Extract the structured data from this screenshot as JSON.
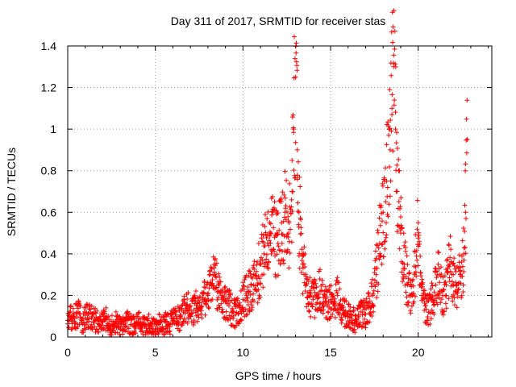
{
  "chart_data": {
    "type": "scatter",
    "title": "Day 311 of 2017, SRMTID for receiver stas",
    "xlabel": "GPS time / hours",
    "ylabel": "SRMTID / TECUs",
    "xlim": [
      0,
      24.2
    ],
    "ylim": [
      0,
      1.4
    ],
    "xticks": [
      0,
      5,
      10,
      15,
      20
    ],
    "xtick_labels": [
      "0",
      "5",
      "10",
      "15",
      "20"
    ],
    "yticks": [
      0,
      0.2,
      0.4,
      0.6,
      0.8,
      1.0,
      1.2,
      1.4
    ],
    "ytick_labels": [
      "0",
      "0.2",
      "0.4",
      "0.6",
      "0.8",
      "1",
      "1.2",
      "1.4"
    ],
    "grid": true,
    "marker": "+",
    "color": "#ff0000",
    "series": [
      {
        "name": "SRMTID",
        "x": [
          0.0,
          0.2,
          0.4,
          0.6,
          0.8,
          1.0,
          1.2,
          1.4,
          1.6,
          1.8,
          2.0,
          2.2,
          2.4,
          2.6,
          2.8,
          3.0,
          3.2,
          3.4,
          3.6,
          3.8,
          4.0,
          4.2,
          4.4,
          4.6,
          4.8,
          5.0,
          5.2,
          5.4,
          5.6,
          5.8,
          6.0,
          6.2,
          6.4,
          6.6,
          6.8,
          7.0,
          7.2,
          7.4,
          7.6,
          7.8,
          8.0,
          8.2,
          8.4,
          8.6,
          8.8,
          9.0,
          9.2,
          9.4,
          9.6,
          9.8,
          10.0,
          10.2,
          10.4,
          10.6,
          10.8,
          11.0,
          11.2,
          11.4,
          11.6,
          11.8,
          12.0,
          12.2,
          12.4,
          12.6,
          12.8,
          12.9,
          13.0,
          13.1,
          13.2,
          13.4,
          13.6,
          13.8,
          14.0,
          14.2,
          14.4,
          14.6,
          14.8,
          15.0,
          15.2,
          15.4,
          15.6,
          15.8,
          16.0,
          16.2,
          16.4,
          16.6,
          16.8,
          17.0,
          17.2,
          17.4,
          17.6,
          17.8,
          18.0,
          18.2,
          18.4,
          18.5,
          18.6,
          18.7,
          18.8,
          19.0,
          19.2,
          19.4,
          19.6,
          19.8,
          20.0,
          20.2,
          20.4,
          20.6,
          20.8,
          21.0,
          21.2,
          21.4,
          21.6,
          21.8,
          22.0,
          22.2,
          22.4,
          22.6,
          22.7,
          22.8
        ],
        "y": [
          0.08,
          0.1,
          0.09,
          0.12,
          0.07,
          0.09,
          0.11,
          0.1,
          0.08,
          0.06,
          0.07,
          0.09,
          0.05,
          0.06,
          0.07,
          0.05,
          0.06,
          0.08,
          0.06,
          0.05,
          0.07,
          0.06,
          0.05,
          0.06,
          0.05,
          0.04,
          0.06,
          0.05,
          0.07,
          0.06,
          0.08,
          0.1,
          0.09,
          0.12,
          0.14,
          0.15,
          0.13,
          0.16,
          0.14,
          0.18,
          0.2,
          0.25,
          0.3,
          0.22,
          0.2,
          0.17,
          0.15,
          0.12,
          0.11,
          0.14,
          0.18,
          0.2,
          0.22,
          0.25,
          0.28,
          0.35,
          0.4,
          0.45,
          0.5,
          0.48,
          0.45,
          0.55,
          0.6,
          0.5,
          0.7,
          1.0,
          1.25,
          0.9,
          0.6,
          0.35,
          0.25,
          0.2,
          0.18,
          0.2,
          0.22,
          0.17,
          0.15,
          0.18,
          0.16,
          0.2,
          0.15,
          0.12,
          0.1,
          0.09,
          0.08,
          0.1,
          0.12,
          0.11,
          0.15,
          0.2,
          0.3,
          0.45,
          0.6,
          0.75,
          0.9,
          1.1,
          1.3,
          1.0,
          0.7,
          0.5,
          0.35,
          0.25,
          0.2,
          0.3,
          0.55,
          0.2,
          0.15,
          0.12,
          0.18,
          0.25,
          0.3,
          0.2,
          0.25,
          0.35,
          0.3,
          0.25,
          0.3,
          0.4,
          0.6,
          0.95
        ],
        "jitter_seed": 311
      }
    ]
  }
}
